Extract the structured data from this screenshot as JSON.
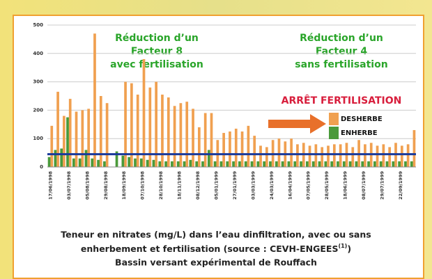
{
  "chart_data": {
    "type": "bar",
    "annotations": [
      "Réduction d’un",
      "Facteur 8",
      "avec fertilisation",
      "Réduction d’un",
      "Facteur 4",
      "sans fertilisation",
      "ARRÊT FERTILISATION"
    ],
    "categories": [
      "17/06/1998",
      null,
      null,
      "03/07/1998",
      null,
      null,
      "05/08/1998",
      null,
      null,
      "29/08/1998",
      null,
      null,
      "18/09/1998",
      null,
      null,
      "07/10/1998",
      null,
      null,
      "28/10/1998",
      null,
      null,
      "18/11/1998",
      null,
      null,
      "08/12/1998",
      null,
      null,
      "05/01/1999",
      null,
      null,
      "27/01/1999",
      null,
      null,
      "03/03/1999",
      null,
      null,
      "24/03/1999",
      null,
      null,
      "16/04/1999",
      null,
      null,
      "07/05/1999",
      null,
      null,
      "28/05/1999",
      null,
      null,
      "18/06/1999",
      null,
      null,
      "08/07/1999",
      null,
      null,
      "29/07/1999",
      null,
      null,
      "22/09/1999",
      null,
      null
    ],
    "series": [
      {
        "name": "DESHERBE",
        "color": "#f0a050",
        "values": [
          145,
          265,
          180,
          240,
          195,
          200,
          205,
          470,
          250,
          225,
          null,
          null,
          300,
          295,
          255,
          380,
          280,
          300,
          255,
          245,
          215,
          225,
          230,
          205,
          140,
          190,
          190,
          95,
          120,
          125,
          135,
          125,
          145,
          110,
          75,
          70,
          95,
          100,
          90,
          100,
          80,
          85,
          75,
          80,
          70,
          75,
          80,
          80,
          85,
          70,
          95,
          80,
          85,
          75,
          80,
          70,
          85,
          75,
          80,
          130
        ]
      },
      {
        "name": "ENHERBE",
        "color": "#4a9a3a",
        "values": [
          35,
          60,
          65,
          175,
          30,
          30,
          60,
          30,
          25,
          20,
          null,
          55,
          40,
          35,
          30,
          30,
          25,
          25,
          20,
          20,
          20,
          20,
          20,
          25,
          20,
          20,
          60,
          20,
          20,
          20,
          20,
          20,
          20,
          20,
          20,
          20,
          20,
          20,
          20,
          20,
          20,
          20,
          20,
          20,
          20,
          20,
          20,
          20,
          20,
          20,
          20,
          20,
          20,
          20,
          20,
          20,
          20,
          20,
          20,
          20
        ]
      }
    ],
    "reference_line": {
      "value": 45,
      "color": "#1a3a9a"
    },
    "ylim": [
      0,
      500
    ],
    "yticks": [
      0,
      100,
      200,
      300,
      400,
      500
    ],
    "grid": true,
    "caption": [
      "Teneur en nitrates (mg/L) dans l’eau dinfiltration, avec ou sans",
      "enherbement et fertilisation (source : CEVH-ENGEES",
      "Bassin versant expérimental de Rouffach"
    ],
    "caption_note": "(1)",
    "caption_close": ")"
  }
}
